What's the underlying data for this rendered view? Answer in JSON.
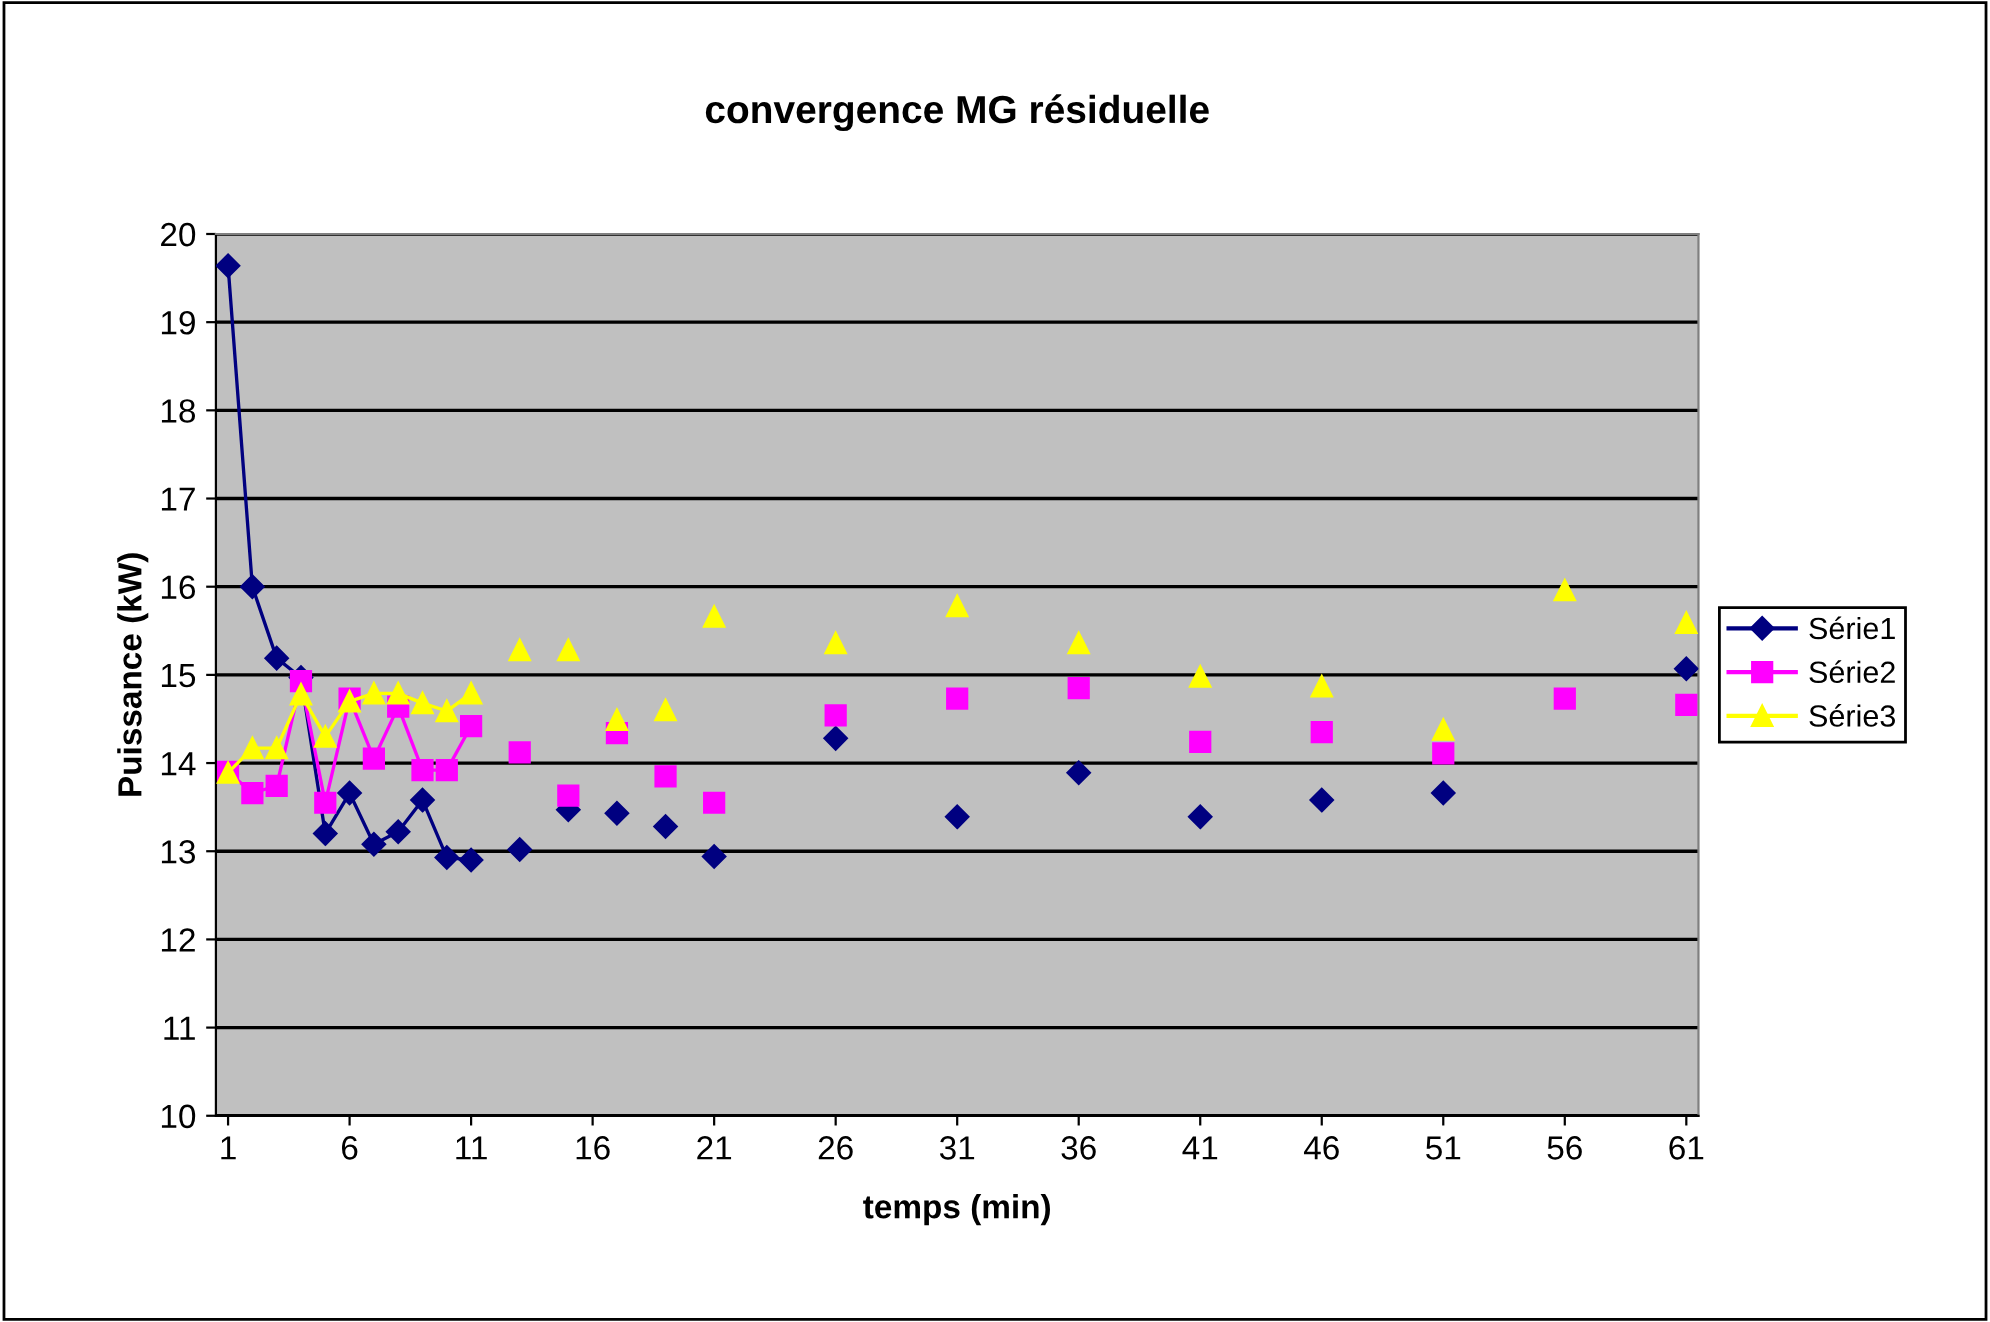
{
  "chart_data": {
    "type": "line",
    "title": "convergence MG résiduelle",
    "xlabel": "temps (min)",
    "ylabel": "Puissance (kW)",
    "x": [
      1,
      2,
      3,
      4,
      5,
      6,
      7,
      8,
      9,
      10,
      11,
      12,
      13,
      14,
      15,
      16,
      17,
      18,
      19,
      20,
      21,
      22,
      23,
      24,
      25,
      26,
      27,
      28,
      29,
      30,
      31,
      32,
      33,
      34,
      35,
      36,
      37,
      38,
      39,
      40,
      41,
      42,
      43,
      44,
      45,
      46,
      47,
      48,
      49,
      50,
      51,
      52,
      53,
      54,
      55,
      56,
      57,
      58,
      59,
      60,
      61
    ],
    "xlim": [
      0.5,
      61.5
    ],
    "xticks": [
      1,
      6,
      11,
      16,
      21,
      26,
      31,
      36,
      41,
      46,
      51,
      56,
      61
    ],
    "ylim": [
      10,
      20
    ],
    "yticks": [
      10,
      11,
      12,
      13,
      14,
      15,
      16,
      17,
      18,
      19,
      20
    ],
    "grid": "y",
    "legend": "right",
    "line_style": "solid",
    "series": [
      {
        "name": "Série1",
        "color": "#000080",
        "marker": "diamond",
        "values": [
          19.64,
          16.0,
          15.19,
          14.97,
          13.2,
          13.66,
          13.08,
          13.22,
          13.58,
          12.93,
          12.9,
          null,
          13.02,
          null,
          13.47,
          null,
          13.43,
          null,
          13.28,
          null,
          12.94,
          null,
          null,
          null,
          null,
          14.28,
          null,
          null,
          null,
          null,
          13.39,
          null,
          null,
          null,
          null,
          13.89,
          null,
          null,
          null,
          null,
          13.39,
          null,
          null,
          null,
          null,
          13.58,
          null,
          null,
          null,
          null,
          13.66,
          null,
          null,
          null,
          null,
          null,
          null,
          null,
          null,
          null,
          15.07
        ]
      },
      {
        "name": "Série2",
        "color": "#ff00ff",
        "marker": "square",
        "values": [
          13.9,
          13.66,
          13.74,
          14.93,
          13.55,
          14.73,
          14.05,
          14.64,
          13.92,
          13.92,
          14.42,
          null,
          14.12,
          null,
          13.63,
          null,
          14.34,
          null,
          13.85,
          null,
          13.55,
          null,
          null,
          null,
          null,
          14.54,
          null,
          null,
          null,
          null,
          14.73,
          null,
          null,
          null,
          null,
          14.85,
          null,
          null,
          null,
          null,
          14.24,
          null,
          null,
          null,
          null,
          14.35,
          null,
          null,
          null,
          null,
          14.11,
          null,
          null,
          null,
          null,
          14.73,
          null,
          null,
          null,
          null,
          14.66
        ]
      },
      {
        "name": "Série3",
        "color": "#ffff00",
        "marker": "triangle",
        "values": [
          13.89,
          14.17,
          14.17,
          14.78,
          14.3,
          14.7,
          14.79,
          14.79,
          14.68,
          14.59,
          14.79,
          null,
          15.28,
          null,
          15.28,
          null,
          14.49,
          null,
          14.6,
          null,
          15.66,
          null,
          null,
          null,
          null,
          15.36,
          null,
          null,
          null,
          null,
          15.78,
          null,
          null,
          null,
          null,
          15.36,
          null,
          null,
          null,
          null,
          14.98,
          null,
          null,
          null,
          null,
          14.87,
          null,
          null,
          null,
          null,
          14.38,
          null,
          null,
          null,
          null,
          15.96,
          null,
          null,
          null,
          null,
          15.59
        ]
      }
    ]
  }
}
